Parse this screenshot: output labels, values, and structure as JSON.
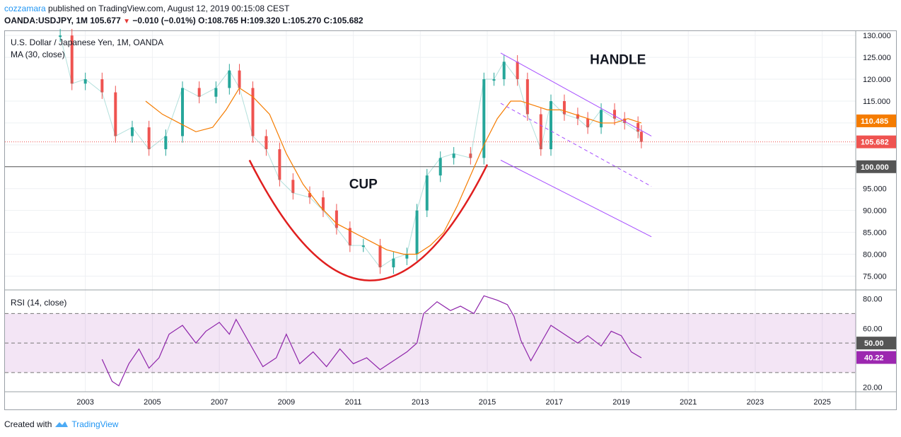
{
  "header": {
    "author": "cozzamara",
    "published_text": "published on TradingView.com, August 12, 2019 00:15:08 CEST",
    "symbol": "OANDA:USDJPY, 1M",
    "last": "105.677",
    "change": "−0.010 (−0.01%)",
    "ohlc": "O:108.765 H:109.320 L:105.270 C:105.682"
  },
  "chart_data": {
    "type": "line",
    "title": "U.S. Dollar / Japanese Yen, 1M, OANDA",
    "indicator": "MA (30, close)",
    "price_axis": {
      "ticks": [
        75,
        80,
        85,
        90,
        95,
        100,
        105,
        110,
        115,
        120,
        125,
        130
      ],
      "tick_labels": [
        "75.000",
        "80.000",
        "85.000",
        "90.000",
        "95.000",
        "100.000",
        "105.000",
        "110.000",
        "115.000",
        "120.000",
        "125.000",
        "130.000"
      ],
      "range": [
        72,
        131
      ]
    },
    "time_axis": {
      "ticks": [
        2003,
        2005,
        2007,
        2009,
        2011,
        2013,
        2015,
        2017,
        2019,
        2021,
        2023,
        2025
      ],
      "range": [
        2000.6,
        2026.0
      ]
    },
    "series": [
      {
        "color": "#ef5350",
        "x": [
          2002.25,
          2002.6,
          2003.0,
          2003.5,
          2003.9,
          2004.4,
          2004.9,
          2005.4,
          2005.9,
          2006.4,
          2006.9,
          2007.3,
          2007.6,
          2008.0,
          2008.4,
          2008.8,
          2009.2,
          2009.7,
          2010.1,
          2010.5,
          2010.9,
          2011.3,
          2011.8,
          2012.2,
          2012.6,
          2012.9,
          2013.2,
          2013.6,
          2014.0,
          2014.5,
          2014.9,
          2015.2,
          2015.5,
          2015.9,
          2016.2,
          2016.6,
          2016.9,
          2017.3,
          2017.7,
          2018.0,
          2018.4,
          2018.8,
          2019.1,
          2019.5,
          2019.6
        ],
        "y": [
          130,
          119,
          120,
          117,
          107,
          109,
          104,
          107,
          118,
          116,
          118,
          122,
          118,
          107,
          104,
          97,
          94,
          93,
          90,
          86,
          82,
          82,
          77,
          79,
          80,
          90,
          98,
          102,
          103,
          102,
          120,
          120,
          124,
          120,
          112,
          104,
          115,
          112,
          111,
          109,
          113,
          111,
          110,
          108,
          105.7
        ]
      },
      {
        "name": "MA (30, close)",
        "color": "#f57c00",
        "x": [
          2004.8,
          2005.3,
          2005.8,
          2006.3,
          2006.8,
          2007.2,
          2007.6,
          2008.0,
          2008.5,
          2009.0,
          2009.5,
          2010.0,
          2010.5,
          2011.0,
          2011.5,
          2012.0,
          2012.5,
          2012.9,
          2013.3,
          2013.7,
          2014.1,
          2014.5,
          2014.9,
          2015.3,
          2015.7,
          2016.0,
          2016.4,
          2016.8,
          2017.2,
          2017.6,
          2018.0,
          2018.4,
          2018.8,
          2019.2,
          2019.6
        ],
        "y": [
          115,
          112,
          110,
          108,
          109,
          113,
          118,
          116,
          112,
          103,
          96,
          91,
          87,
          85,
          83,
          81,
          80,
          80,
          82,
          85,
          91,
          98,
          105,
          111,
          115,
          115,
          114,
          113,
          113,
          112,
          111,
          110,
          110,
          111,
          110
        ]
      }
    ],
    "markers": [
      {
        "label": "110.485",
        "value": 110.485,
        "color": "#f57c00"
      },
      {
        "label": "105.682",
        "value": 105.682,
        "color": "#ef5350"
      },
      {
        "label": "100.000",
        "value": 100.0,
        "color": "#555555"
      }
    ],
    "annotations": {
      "cup": "CUP",
      "handle": "HANDLE"
    },
    "rsi": {
      "title": "RSI (14, close)",
      "ticks": [
        20,
        40,
        60,
        80
      ],
      "tick_labels": [
        "20.00",
        "40.00",
        "60.00",
        "80.00"
      ],
      "range": [
        17,
        86
      ],
      "overbought": 70,
      "oversold": 30,
      "mid": 50,
      "mid_label": "50.00",
      "current_label": "40.22",
      "current": 40.22,
      "color": "#8e24aa",
      "x": [
        2003.5,
        2003.8,
        2004.0,
        2004.3,
        2004.6,
        2004.9,
        2005.2,
        2005.5,
        2005.9,
        2006.3,
        2006.6,
        2007.0,
        2007.3,
        2007.5,
        2007.9,
        2008.3,
        2008.7,
        2009.0,
        2009.4,
        2009.8,
        2010.2,
        2010.6,
        2011.0,
        2011.4,
        2011.8,
        2012.2,
        2012.6,
        2012.9,
        2013.1,
        2013.5,
        2013.9,
        2014.2,
        2014.6,
        2014.9,
        2015.3,
        2015.6,
        2015.8,
        2016.0,
        2016.3,
        2016.6,
        2016.9,
        2017.3,
        2017.7,
        2018.0,
        2018.4,
        2018.7,
        2019.0,
        2019.3,
        2019.6
      ],
      "y": [
        39,
        24,
        21,
        36,
        46,
        33,
        40,
        56,
        62,
        50,
        58,
        64,
        56,
        66,
        50,
        34,
        40,
        56,
        36,
        44,
        34,
        46,
        36,
        40,
        32,
        38,
        44,
        50,
        70,
        78,
        72,
        75,
        70,
        82,
        79,
        76,
        68,
        52,
        38,
        50,
        62,
        56,
        50,
        55,
        48,
        58,
        55,
        44,
        40
      ]
    }
  },
  "footer": {
    "created_with": "Created with",
    "brand": "TradingView"
  }
}
